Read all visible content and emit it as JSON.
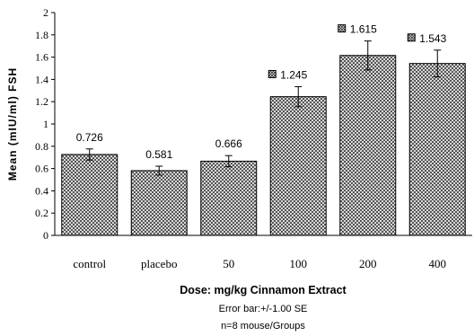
{
  "chart_data": {
    "type": "bar",
    "categories": [
      "control",
      "placebo",
      "50",
      "100",
      "200",
      "400"
    ],
    "values": [
      0.726,
      0.581,
      0.666,
      1.245,
      1.615,
      1.543
    ],
    "value_labels": [
      "0.726",
      "0.581",
      "0.666",
      "1.245",
      "1.615",
      "1.543"
    ],
    "error_bars": [
      0.05,
      0.04,
      0.05,
      0.09,
      0.13,
      0.12
    ],
    "significance_marked": [
      false,
      false,
      false,
      true,
      true,
      true
    ],
    "ylabel": "Mean (mIU/ml) FSH",
    "xlabel": "Dose: mg/kg Cinnamon Extract",
    "notes": [
      "Error bar:+/-1.00 SE",
      "n=8 mouse/Groups"
    ],
    "ylim": [
      0,
      2
    ],
    "yticks": [
      "0",
      "0.2",
      "0.4",
      "0.6",
      "0.8",
      "1",
      "1.2",
      "1.4",
      "1.6",
      "1.8",
      "2"
    ],
    "bar_fill": "crosshatch-pattern",
    "grid": false,
    "legend": "none"
  }
}
